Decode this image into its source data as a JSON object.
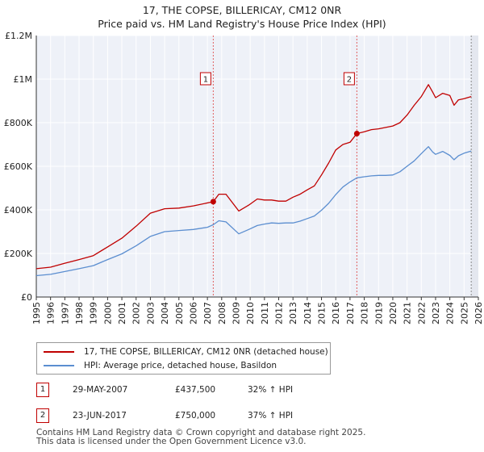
{
  "chart_data": {
    "type": "line",
    "title": "17, THE COPSE, BILLERICAY, CM12 0NR",
    "subtitle": "Price paid vs. HM Land Registry's House Price Index (HPI)",
    "xlim": [
      1995,
      2026
    ],
    "ylim": [
      0,
      1200000
    ],
    "x_ticks": [
      "1995",
      "1996",
      "1997",
      "1998",
      "1999",
      "2000",
      "2001",
      "2002",
      "2003",
      "2004",
      "2005",
      "2006",
      "2007",
      "2008",
      "2009",
      "2010",
      "2011",
      "2012",
      "2013",
      "2014",
      "2015",
      "2016",
      "2017",
      "2018",
      "2019",
      "2020",
      "2021",
      "2022",
      "2023",
      "2024",
      "2025",
      "2026"
    ],
    "y_ticks": [
      {
        "value": 0,
        "label": "£0"
      },
      {
        "value": 200000,
        "label": "£200K"
      },
      {
        "value": 400000,
        "label": "£400K"
      },
      {
        "value": 600000,
        "label": "£600K"
      },
      {
        "value": 800000,
        "label": "£800K"
      },
      {
        "value": 1000000,
        "label": "£1M"
      },
      {
        "value": 1200000,
        "label": "£1.2M"
      }
    ],
    "grid": true,
    "series": [
      {
        "name": "17, THE COPSE, BILLERICAY, CM12 0NR (detached house)",
        "color": "#c00000",
        "x": [
          1995,
          1996,
          1997,
          1998,
          1999,
          2000,
          2001,
          2002,
          2003,
          2004,
          2005,
          2006,
          2007.41,
          2007.8,
          2008.3,
          2009.2,
          2009.9,
          2010.5,
          2011,
          2011.5,
          2012,
          2012.5,
          2013,
          2013.5,
          2014,
          2014.5,
          2015,
          2015.5,
          2016,
          2016.5,
          2017,
          2017.48,
          2018,
          2018.5,
          2019,
          2019.5,
          2020,
          2020.5,
          2021,
          2021.5,
          2022,
          2022.5,
          2022.8,
          2023,
          2023.5,
          2024,
          2024.3,
          2024.6,
          2025,
          2025.5
        ],
        "values": [
          130000,
          137000,
          155000,
          172000,
          190000,
          230000,
          270000,
          325000,
          385000,
          405000,
          408000,
          418000,
          437500,
          472000,
          472000,
          395000,
          422000,
          450000,
          445000,
          445000,
          440000,
          440000,
          458000,
          472000,
          492000,
          510000,
          560000,
          615000,
          675000,
          700000,
          710000,
          750000,
          758000,
          768000,
          772000,
          778000,
          785000,
          800000,
          835000,
          880000,
          920000,
          975000,
          940000,
          915000,
          935000,
          925000,
          880000,
          905000,
          910000,
          920000
        ]
      },
      {
        "name": "HPI: Average price, detached house, Basildon",
        "color": "#5b8ed0",
        "x": [
          1995,
          1996,
          1997,
          1998,
          1999,
          2000,
          2001,
          2002,
          2003,
          2004,
          2005,
          2006,
          2007,
          2007.41,
          2007.8,
          2008.3,
          2009.2,
          2009.9,
          2010.5,
          2011,
          2011.5,
          2012,
          2012.5,
          2013,
          2013.5,
          2014,
          2014.5,
          2015,
          2015.5,
          2016,
          2016.5,
          2017,
          2017.48,
          2018,
          2018.5,
          2019,
          2019.5,
          2020,
          2020.5,
          2021,
          2021.5,
          2022,
          2022.5,
          2022.8,
          2023,
          2023.5,
          2024,
          2024.3,
          2024.6,
          2025,
          2025.5
        ],
        "values": [
          98000,
          104000,
          117000,
          130000,
          144000,
          172000,
          198000,
          235000,
          278000,
          300000,
          305000,
          310000,
          320000,
          332000,
          350000,
          345000,
          290000,
          310000,
          328000,
          335000,
          340000,
          338000,
          340000,
          340000,
          348000,
          360000,
          372000,
          398000,
          430000,
          470000,
          505000,
          528000,
          547000,
          552000,
          556000,
          558000,
          558000,
          560000,
          575000,
          600000,
          625000,
          658000,
          690000,
          665000,
          655000,
          668000,
          650000,
          630000,
          648000,
          660000,
          670000
        ]
      }
    ],
    "sales": [
      {
        "id": "1",
        "x": 2007.41,
        "value": 437500,
        "date": "29-MAY-2007",
        "price": "£437,500",
        "hpi_change": "32% ↑ HPI"
      },
      {
        "id": "2",
        "x": 2017.48,
        "value": 750000,
        "date": "23-JUN-2017",
        "price": "£750,000",
        "hpi_change": "37% ↑ HPI"
      }
    ],
    "marker_label_value": 1000000,
    "forecast_from": 2025.5
  },
  "legend": {
    "property_label": "17, THE COPSE, BILLERICAY, CM12 0NR (detached house)",
    "hpi_label": "HPI: Average price, detached house, Basildon"
  },
  "footer": {
    "line1": "Contains HM Land Registry data © Crown copyright and database right 2025.",
    "line2": "This data is licensed under the Open Government Licence v3.0."
  },
  "colors": {
    "property": "#c00000",
    "hpi": "#5b8ed0",
    "grid": "#dddddd",
    "plot_bg": "#eef1f8",
    "marker_line": "#e06060"
  }
}
